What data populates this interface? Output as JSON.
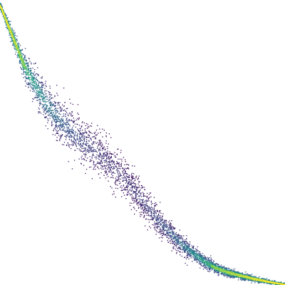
{
  "chart_data": {
    "type": "heatmap",
    "title": "",
    "xlabel": "",
    "ylabel": "",
    "xlim": [
      0,
      1
    ],
    "ylim": [
      0,
      1
    ],
    "grid": false,
    "axes_visible": false,
    "legend": "none",
    "colormap": [
      "#440154",
      "#3b528b",
      "#21918c",
      "#5ec962",
      "#fde725"
    ],
    "background": "#ffffff",
    "series": [
      {
        "name": "",
        "x": [
          0.0,
          0.02,
          0.04,
          0.06,
          0.08,
          0.1,
          0.13,
          0.16,
          0.2,
          0.24,
          0.28,
          0.32,
          0.36,
          0.4,
          0.44,
          0.48,
          0.52,
          0.56,
          0.6,
          0.64,
          0.68,
          0.72,
          0.76,
          0.8,
          0.84,
          0.88,
          0.92,
          0.96,
          1.0
        ],
        "y_center": [
          0.98,
          0.93,
          0.88,
          0.83,
          0.78,
          0.74,
          0.69,
          0.64,
          0.59,
          0.55,
          0.51,
          0.48,
          0.45,
          0.41,
          0.37,
          0.32,
          0.27,
          0.22,
          0.18,
          0.14,
          0.11,
          0.08,
          0.06,
          0.045,
          0.035,
          0.025,
          0.017,
          0.009,
          0.003
        ],
        "band_width": [
          0.01,
          0.015,
          0.022,
          0.03,
          0.038,
          0.045,
          0.052,
          0.058,
          0.064,
          0.068,
          0.07,
          0.071,
          0.07,
          0.066,
          0.061,
          0.055,
          0.048,
          0.041,
          0.035,
          0.029,
          0.024,
          0.02,
          0.016,
          0.013,
          0.011,
          0.009,
          0.007,
          0.005,
          0.004
        ],
        "density": [
          1.0,
          0.95,
          0.85,
          0.72,
          0.6,
          0.5,
          0.42,
          0.35,
          0.28,
          0.22,
          0.18,
          0.15,
          0.13,
          0.12,
          0.12,
          0.13,
          0.15,
          0.19,
          0.24,
          0.31,
          0.4,
          0.5,
          0.6,
          0.7,
          0.78,
          0.85,
          0.92,
          0.97,
          1.0
        ]
      }
    ]
  }
}
